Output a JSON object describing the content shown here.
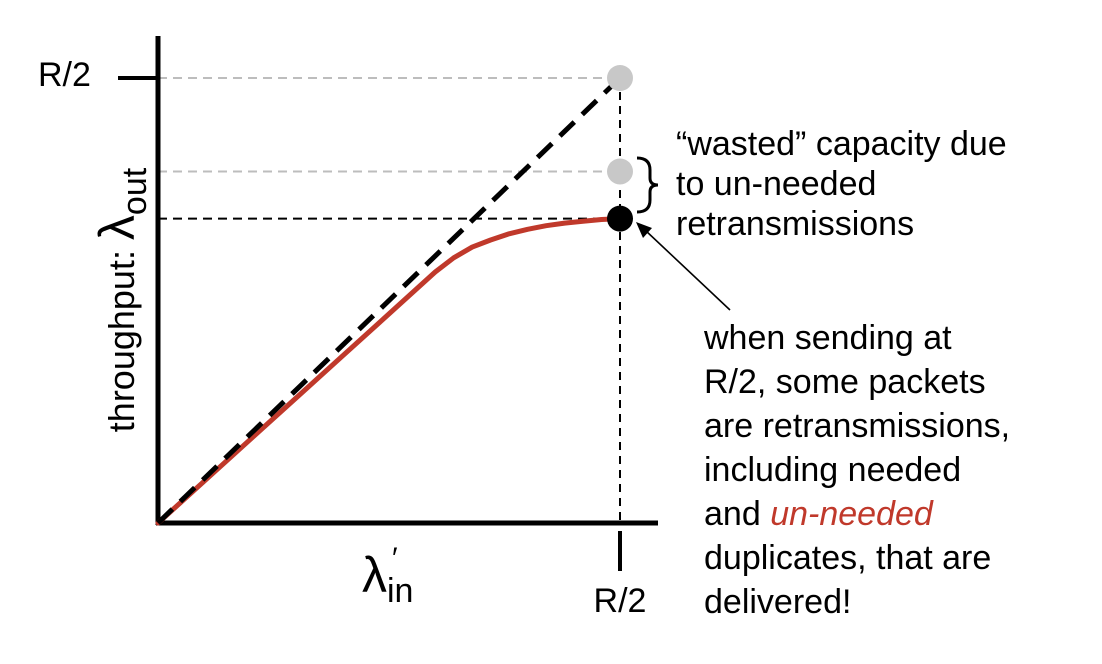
{
  "chart_data": {
    "type": "line",
    "xlabel": {
      "symbol": "λ",
      "sub": "in",
      "prime": "′"
    },
    "ylabel": {
      "prefix": "throughput: ",
      "symbol": "λ",
      "sub": "out"
    },
    "x_tick_label": "R/2",
    "y_tick_label": "R/2",
    "xlim": [
      0,
      0.56
    ],
    "ylim": [
      0,
      0.54
    ],
    "ideal_line": {
      "x": [
        0,
        0.5
      ],
      "y": [
        0,
        0.5
      ]
    },
    "throughput_curve": {
      "x": [
        0,
        0.05,
        0.1,
        0.15,
        0.2,
        0.25,
        0.3,
        0.32,
        0.34,
        0.36,
        0.38,
        0.4,
        0.42,
        0.44,
        0.46,
        0.48,
        0.5
      ],
      "y": [
        0,
        0.047,
        0.094,
        0.141,
        0.188,
        0.235,
        0.282,
        0.298,
        0.31,
        0.318,
        0.325,
        0.33,
        0.334,
        0.337,
        0.339,
        0.341,
        0.342
      ]
    },
    "points": [
      {
        "x": 0.5,
        "y": 0.5,
        "color": "#c8c8c8"
      },
      {
        "x": 0.5,
        "y": 0.395,
        "color": "#c8c8c8"
      },
      {
        "x": 0.5,
        "y": 0.342,
        "color": "#000000"
      }
    ],
    "colors": {
      "curve": "#c0392b",
      "ideal": "#000000",
      "guide_gray": "#bdbdbd",
      "guide_black": "#000000"
    }
  },
  "annotations": {
    "wasted": {
      "lines": [
        "“wasted” capacity due",
        "to un-needed",
        "retransmissions"
      ]
    },
    "explain": {
      "line1": "when sending at",
      "line2": "R/2, some packets",
      "line3": "are retransmissions,",
      "line4": "including needed",
      "line5_pre": "and ",
      "line5_em": "un-needed",
      "line6": "duplicates, that are",
      "line7": "delivered!"
    }
  }
}
